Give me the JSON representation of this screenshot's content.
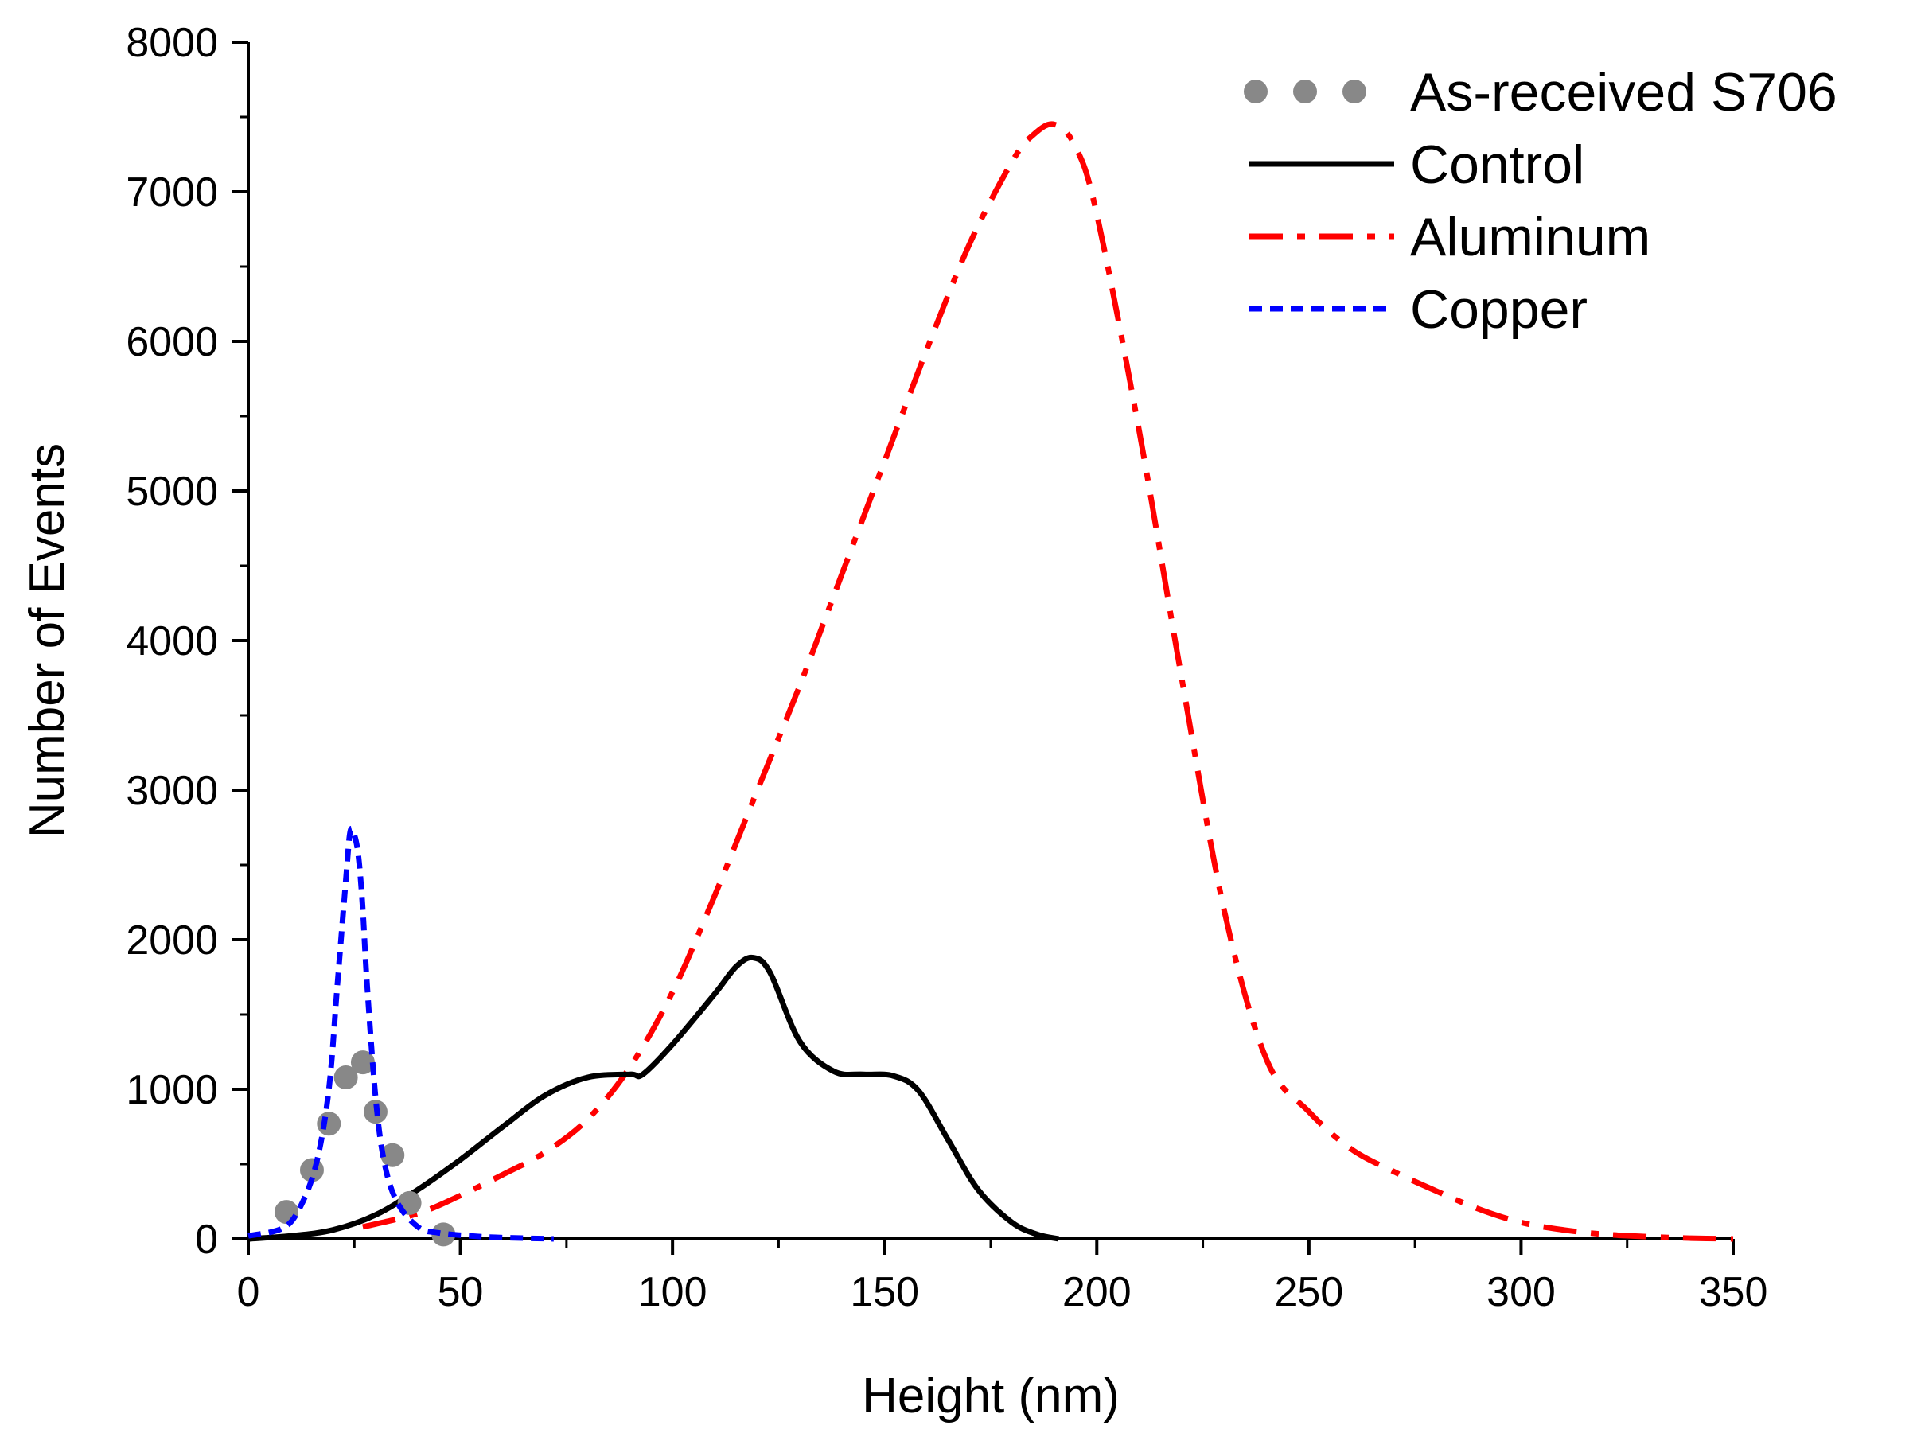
{
  "chart_data": {
    "type": "line",
    "title": "",
    "xlabel": "Height (nm)",
    "ylabel": "Number of Events",
    "xlim": [
      0,
      350
    ],
    "ylim": [
      0,
      8000
    ],
    "x_ticks": [
      0,
      50,
      100,
      150,
      200,
      250,
      300,
      350
    ],
    "y_ticks": [
      0,
      1000,
      2000,
      3000,
      4000,
      5000,
      6000,
      7000,
      8000
    ],
    "legend_position": "top-right",
    "series": [
      {
        "name": "As-received S706",
        "style": "dots",
        "color": "#888888",
        "x": [
          9,
          15,
          19,
          23,
          27,
          30,
          34,
          38,
          46
        ],
        "y": [
          180,
          460,
          770,
          1080,
          1180,
          850,
          560,
          240,
          30
        ]
      },
      {
        "name": "Control",
        "style": "solid",
        "color": "#000000",
        "x": [
          0,
          10,
          20,
          30,
          40,
          50,
          60,
          70,
          80,
          90,
          93,
          100,
          110,
          115,
          119,
          123,
          130,
          138,
          145,
          152,
          158,
          165,
          172,
          180,
          186,
          191
        ],
        "y": [
          0,
          20,
          60,
          160,
          330,
          530,
          750,
          960,
          1080,
          1100,
          1100,
          1300,
          1640,
          1820,
          1880,
          1780,
          1320,
          1120,
          1100,
          1090,
          990,
          660,
          330,
          110,
          30,
          0
        ]
      },
      {
        "name": "Aluminum",
        "style": "dash-dot",
        "color": "#ff0000",
        "x": [
          27,
          40,
          50,
          60,
          70,
          80,
          90,
          100,
          110,
          120,
          130,
          140,
          150,
          160,
          170,
          180,
          185,
          190,
          195,
          200,
          210,
          220,
          230,
          240,
          250,
          260,
          270,
          280,
          290,
          300,
          310,
          320,
          330,
          340,
          350
        ],
        "y": [
          80,
          170,
          290,
          430,
          580,
          800,
          1150,
          1650,
          2300,
          3000,
          3700,
          4450,
          5200,
          5950,
          6650,
          7200,
          7380,
          7450,
          7300,
          6850,
          5400,
          3750,
          2200,
          1200,
          850,
          600,
          450,
          320,
          200,
          110,
          60,
          30,
          15,
          5,
          0
        ]
      },
      {
        "name": "Copper",
        "style": "dashed",
        "color": "#0000ff",
        "x": [
          0,
          8,
          12,
          16,
          19,
          21,
          23,
          24,
          25,
          26,
          27,
          28,
          30,
          32,
          35,
          40,
          45,
          55,
          65,
          72
        ],
        "y": [
          20,
          70,
          200,
          500,
          1000,
          1700,
          2400,
          2720,
          2700,
          2550,
          2200,
          1700,
          950,
          520,
          250,
          80,
          40,
          15,
          5,
          0
        ]
      }
    ]
  }
}
